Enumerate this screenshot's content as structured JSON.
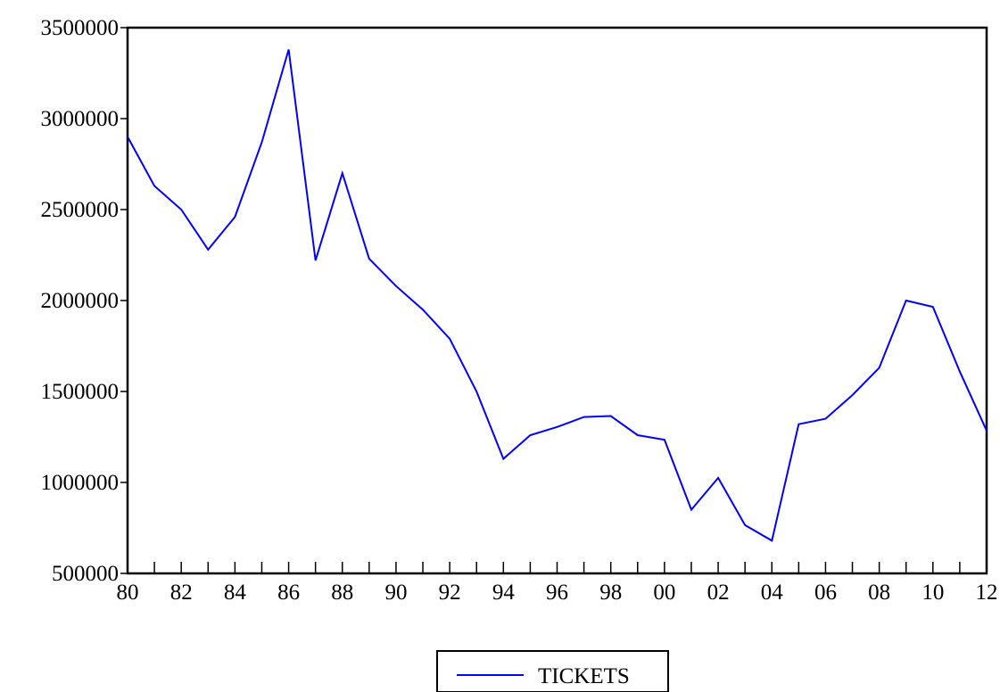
{
  "chart_data": {
    "type": "line",
    "title": "",
    "xlabel": "",
    "ylabel": "",
    "x": [
      "80",
      "81",
      "82",
      "83",
      "84",
      "85",
      "86",
      "87",
      "88",
      "89",
      "90",
      "91",
      "92",
      "93",
      "94",
      "95",
      "96",
      "97",
      "98",
      "99",
      "00",
      "01",
      "02",
      "03",
      "04",
      "05",
      "06",
      "07",
      "08",
      "09",
      "10",
      "11",
      "12"
    ],
    "x_tick_labels": [
      "80",
      "82",
      "84",
      "86",
      "88",
      "90",
      "92",
      "94",
      "96",
      "98",
      "00",
      "02",
      "04",
      "06",
      "08",
      "10",
      "12"
    ],
    "y_ticks": [
      500000,
      1000000,
      1500000,
      2000000,
      2500000,
      3000000,
      3500000
    ],
    "y_tick_labels": [
      "500000",
      "1000000",
      "1500000",
      "2000000",
      "2500000",
      "3000000",
      "3500000"
    ],
    "ylim": [
      500000,
      3500000
    ],
    "series": [
      {
        "name": "TICKETS",
        "color": "#0000ff",
        "values": [
          2900000,
          2630000,
          2500000,
          2280000,
          2460000,
          2870000,
          3380000,
          2220000,
          2700000,
          2230000,
          2080000,
          1950000,
          1790000,
          1500000,
          1130000,
          1260000,
          1305000,
          1360000,
          1365000,
          1260000,
          1235000,
          850000,
          1025000,
          765000,
          680000,
          1320000,
          1350000,
          1480000,
          1630000,
          2000000,
          1965000,
          1610000,
          1285000
        ]
      }
    ],
    "legend": {
      "position": "bottom-center",
      "label": "TICKETS"
    },
    "grid": false
  }
}
